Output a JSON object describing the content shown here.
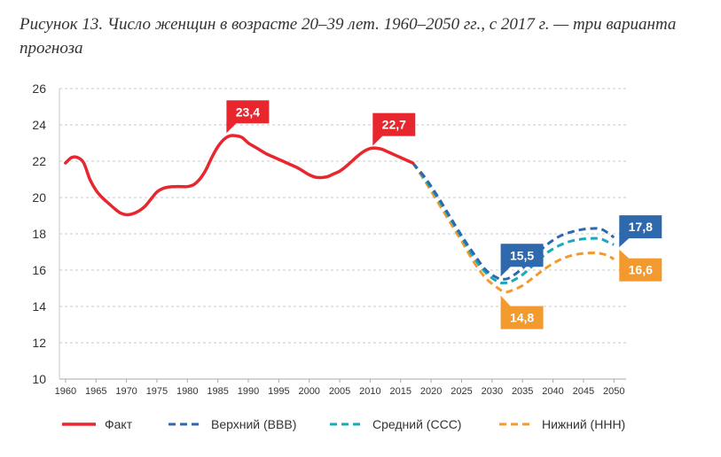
{
  "figure": {
    "caption": "Рисунок 13. Число женщин в возрасте 20–39 лет. 1960–2050 гг., с 2017 г. — три варианта прогноза"
  },
  "colors": {
    "fact": "#e8262e",
    "upper": "#2f69ad",
    "medium": "#1aa9b8",
    "lower": "#f39a2e",
    "grid": "#c8c8c8",
    "axis": "#aaaaaa"
  },
  "chart_data": {
    "type": "line",
    "title": "",
    "xlabel": "",
    "ylabel": "",
    "xlim": [
      1959,
      2052
    ],
    "ylim": [
      10,
      26
    ],
    "grid": true,
    "grid_style": "dashed-horizontal",
    "legend_position": "bottom",
    "x_ticks": [
      "1960",
      "1965",
      "1970",
      "1975",
      "1980",
      "1985",
      "1990",
      "1995",
      "2000",
      "2005",
      "2010",
      "2015",
      "2020",
      "2025",
      "2030",
      "2035",
      "2040",
      "2045",
      "2050"
    ],
    "y_ticks": [
      "10",
      "12",
      "14",
      "16",
      "18",
      "20",
      "22",
      "24",
      "26"
    ],
    "series": [
      {
        "key": "fact",
        "name": "Факт",
        "style": "solid",
        "x": [
          1960,
          1961,
          1962,
          1963,
          1964,
          1965,
          1966,
          1967,
          1968,
          1969,
          1970,
          1971,
          1972,
          1973,
          1974,
          1975,
          1976,
          1977,
          1978,
          1979,
          1980,
          1981,
          1982,
          1983,
          1984,
          1985,
          1986,
          1987,
          1988,
          1989,
          1990,
          1991,
          1992,
          1993,
          1994,
          1995,
          1996,
          1997,
          1998,
          1999,
          2000,
          2001,
          2002,
          2003,
          2004,
          2005,
          2006,
          2007,
          2008,
          2009,
          2010,
          2011,
          2012,
          2013,
          2014,
          2015,
          2016,
          2017
        ],
        "y": [
          21.9,
          22.2,
          22.2,
          21.9,
          21.0,
          20.4,
          20.0,
          19.7,
          19.4,
          19.15,
          19.05,
          19.1,
          19.25,
          19.5,
          19.9,
          20.3,
          20.5,
          20.58,
          20.6,
          20.6,
          20.6,
          20.7,
          21.0,
          21.5,
          22.2,
          22.8,
          23.2,
          23.4,
          23.4,
          23.3,
          23.0,
          22.8,
          22.6,
          22.4,
          22.25,
          22.1,
          21.95,
          21.8,
          21.65,
          21.45,
          21.25,
          21.12,
          21.1,
          21.15,
          21.3,
          21.45,
          21.7,
          22.0,
          22.3,
          22.55,
          22.7,
          22.72,
          22.65,
          22.5,
          22.35,
          22.2,
          22.05,
          21.9
        ]
      },
      {
        "key": "upper",
        "name": "Верхний (ВВВ)",
        "style": "dashed",
        "x": [
          2017,
          2019,
          2021,
          2023,
          2025,
          2027,
          2029,
          2031,
          2032,
          2033,
          2035,
          2037,
          2039,
          2041,
          2043,
          2045,
          2047,
          2048,
          2049,
          2050
        ],
        "y": [
          21.9,
          21.1,
          20.1,
          19.0,
          17.9,
          16.9,
          16.0,
          15.55,
          15.5,
          15.6,
          16.1,
          16.8,
          17.4,
          17.85,
          18.1,
          18.25,
          18.3,
          18.25,
          18.05,
          17.8
        ]
      },
      {
        "key": "medium",
        "name": "Средний (ССС)",
        "style": "dashed",
        "x": [
          2017,
          2019,
          2021,
          2023,
          2025,
          2027,
          2029,
          2031,
          2032,
          2033,
          2035,
          2037,
          2039,
          2041,
          2043,
          2045,
          2047,
          2048,
          2049,
          2050
        ],
        "y": [
          21.9,
          21.0,
          20.0,
          18.9,
          17.8,
          16.7,
          15.85,
          15.35,
          15.3,
          15.35,
          15.75,
          16.35,
          16.95,
          17.35,
          17.6,
          17.72,
          17.75,
          17.7,
          17.55,
          17.4
        ]
      },
      {
        "key": "lower",
        "name": "Нижний (ННН)",
        "style": "dashed",
        "x": [
          2017,
          2019,
          2021,
          2023,
          2025,
          2027,
          2029,
          2031,
          2032,
          2033,
          2035,
          2037,
          2039,
          2041,
          2043,
          2045,
          2047,
          2048,
          2049,
          2050
        ],
        "y": [
          21.9,
          20.9,
          19.8,
          18.7,
          17.6,
          16.45,
          15.55,
          15.0,
          14.8,
          14.85,
          15.15,
          15.65,
          16.15,
          16.55,
          16.8,
          16.92,
          16.95,
          16.9,
          16.8,
          16.6
        ]
      }
    ],
    "annotations": [
      {
        "key": "peak1987",
        "series": "fact",
        "x": 1987,
        "y": 23.4,
        "text": "23,4",
        "placement": "above"
      },
      {
        "key": "peak2011",
        "series": "fact",
        "x": 2011,
        "y": 22.7,
        "text": "22,7",
        "placement": "above"
      },
      {
        "key": "upperMin",
        "series": "upper",
        "x": 2032,
        "y": 15.5,
        "text": "15,5",
        "placement": "above"
      },
      {
        "key": "lowerMin",
        "series": "lower",
        "x": 2032,
        "y": 14.8,
        "text": "14,8",
        "placement": "below"
      },
      {
        "key": "upperEnd",
        "series": "upper",
        "x": 2050,
        "y": 17.8,
        "text": "17,8",
        "placement": "right"
      },
      {
        "key": "lowerEnd",
        "series": "lower",
        "x": 2050,
        "y": 16.6,
        "text": "16,6",
        "placement": "right"
      }
    ]
  }
}
